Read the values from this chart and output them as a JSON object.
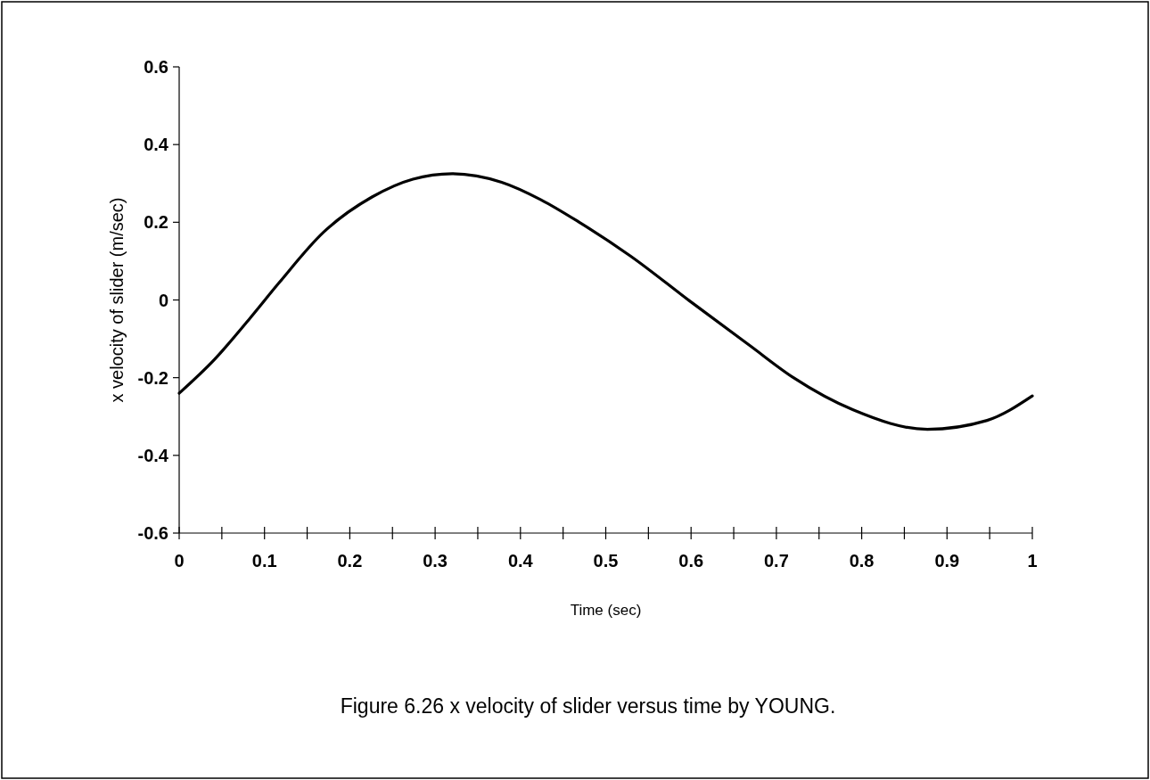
{
  "chart_data": {
    "type": "line",
    "title": "Figure 6.26  x velocity of slider versus time by YOUNG.",
    "xlabel": "Time (sec)",
    "ylabel": "x velocity of slider (m/sec)",
    "x": [
      0,
      0.041,
      0.083,
      0.117,
      0.169,
      0.226,
      0.274,
      0.32,
      0.378,
      0.424,
      0.469,
      0.529,
      0.598,
      0.668,
      0.72,
      0.79,
      0.877,
      0.947,
      1
    ],
    "series": [
      {
        "color": "#000000",
        "values": [
          -0.24,
          -0.154,
          -0.047,
          0.044,
          0.174,
          0.265,
          0.311,
          0.325,
          0.303,
          0.258,
          0.2,
          0.113,
          -0.002,
          -0.116,
          -0.2,
          -0.283,
          -0.333,
          -0.31,
          -0.247
        ]
      }
    ],
    "xlim": [
      0,
      1
    ],
    "ylim": [
      -0.6,
      0.6
    ],
    "xticks": [
      0,
      {
        "value": 0.05,
        "label": null
      },
      0.1,
      {
        "value": 0.15,
        "label": null
      },
      0.2,
      {
        "value": 0.25,
        "label": null
      },
      0.3,
      {
        "value": 0.35,
        "label": null
      },
      0.4,
      {
        "value": 0.45,
        "label": null
      },
      0.5,
      {
        "value": 0.55,
        "label": null
      },
      0.6,
      {
        "value": 0.65,
        "label": null
      },
      0.7,
      {
        "value": 0.75,
        "label": null
      },
      0.8,
      {
        "value": 0.85,
        "label": null
      },
      0.9,
      {
        "value": 0.95,
        "label": null
      },
      1
    ],
    "yticks": [
      -0.6,
      -0.4,
      -0.2,
      0,
      0.2,
      0.4,
      0.6
    ],
    "grid": false,
    "marker": "none",
    "line_style": "solid"
  }
}
